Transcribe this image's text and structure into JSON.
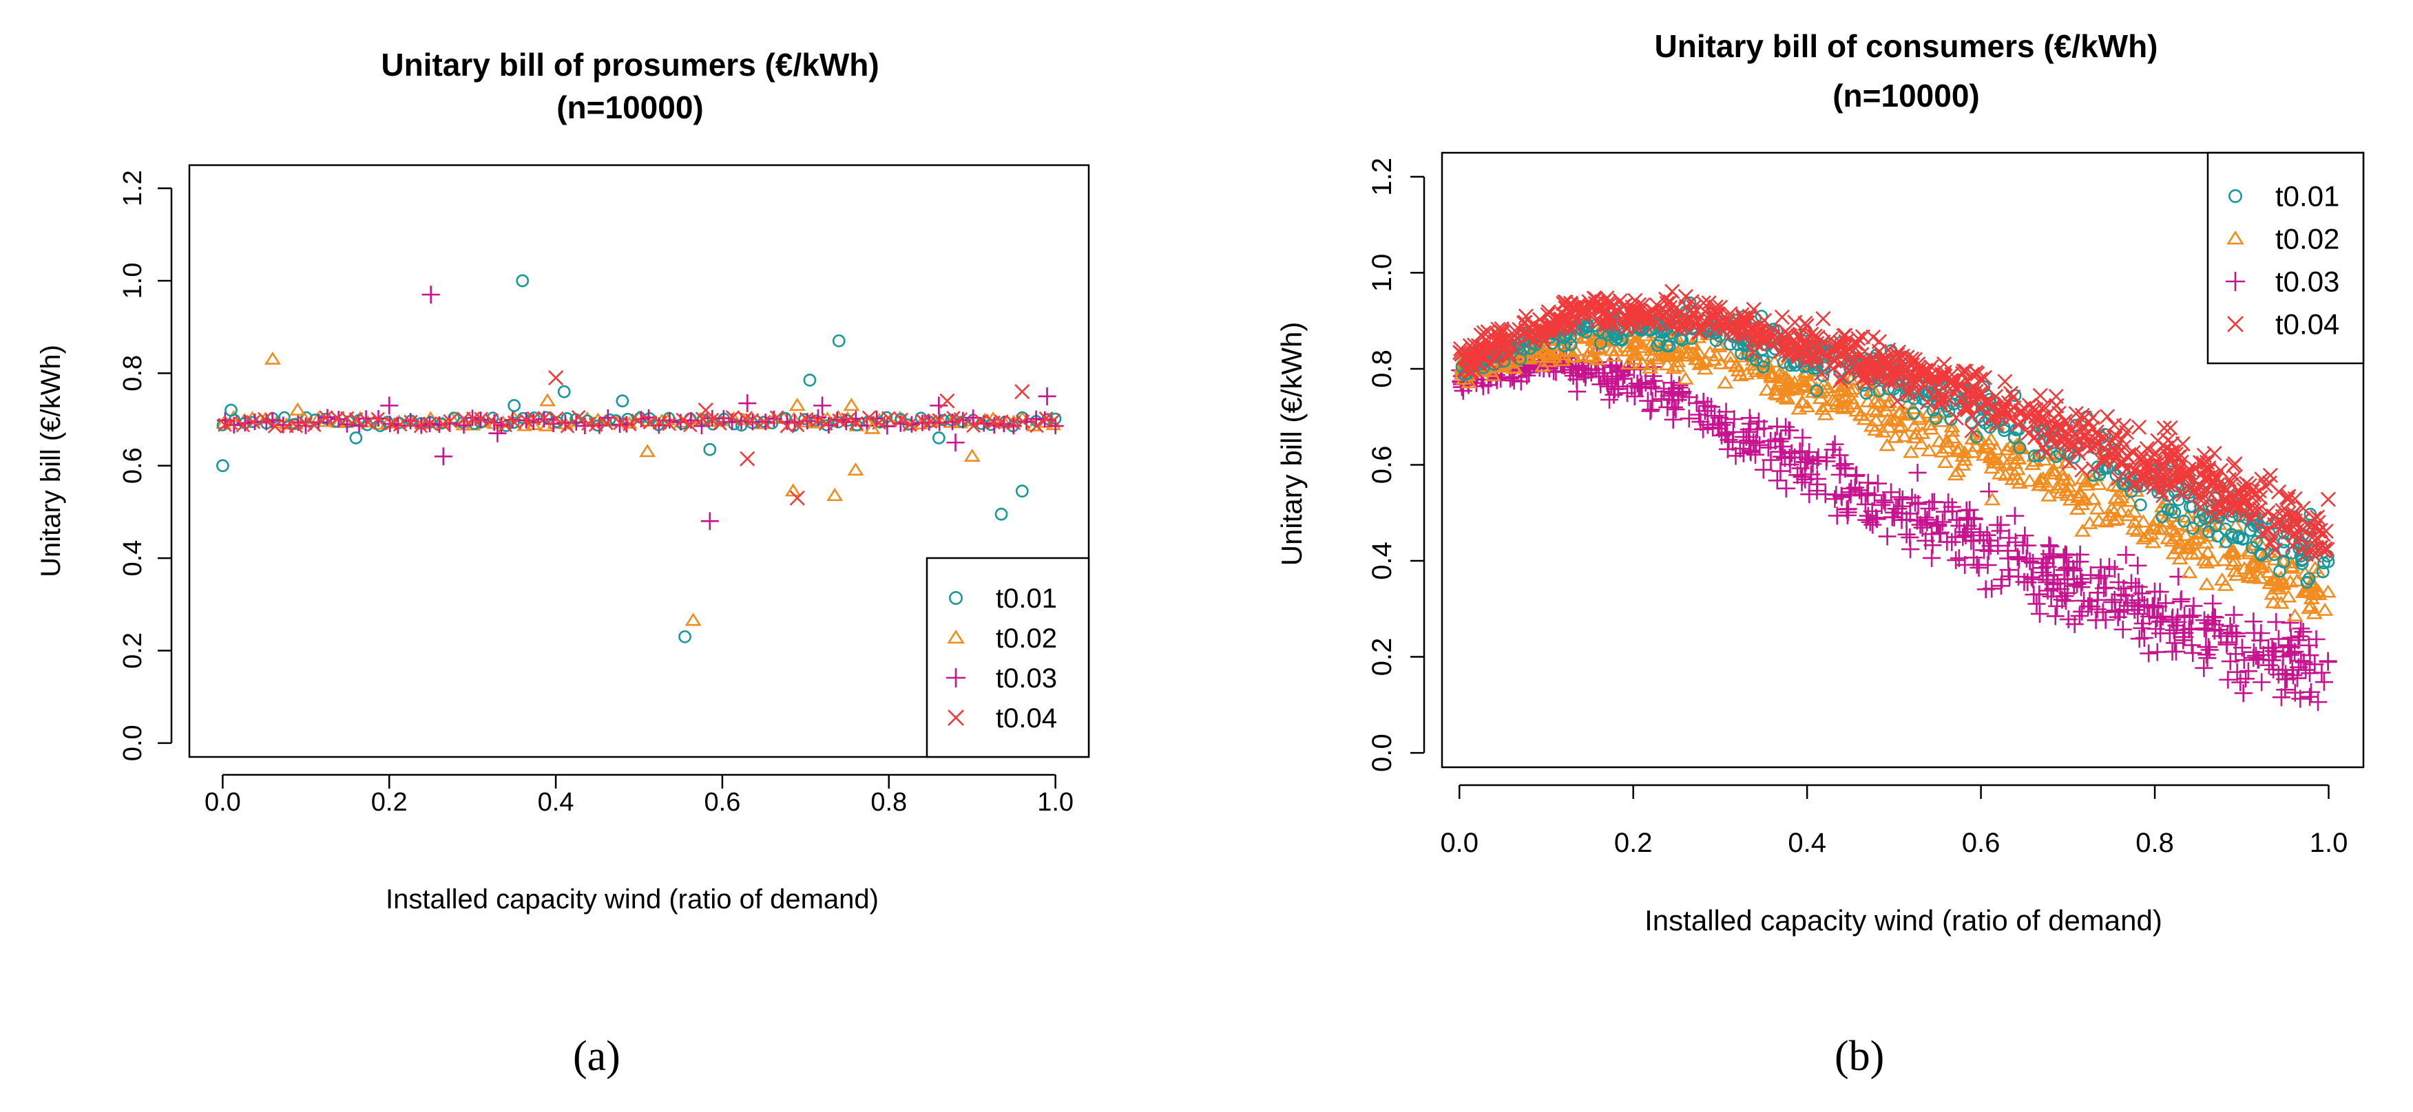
{
  "colors": {
    "t0.01": "#17999a",
    "t0.02": "#f28c1e",
    "t0.03": "#c8138f",
    "t0.04": "#f23a3a"
  },
  "chart_data": [
    {
      "type": "scatter",
      "panel_label": "(a)",
      "title": "Unitary bill of prosumers (€/kWh)",
      "subtitle": "(n=10000)",
      "xlabel": "Installed capacity wind (ratio of demand)",
      "ylabel": "Unitary bill (€/kWh)",
      "xlim": [
        -0.04,
        1.04
      ],
      "ylim": [
        -0.03,
        1.25
      ],
      "xticks": [
        "0.0",
        "0.2",
        "0.4",
        "0.6",
        "0.8",
        "1.0"
      ],
      "yticks": [
        "0.0",
        "0.2",
        "0.4",
        "0.6",
        "0.8",
        "1.0",
        "1.2"
      ],
      "legend": [
        "t0.01",
        "t0.02",
        "t0.03",
        "t0.04"
      ],
      "legend_position": "bottom-right",
      "band": {
        "y_center": 0.695,
        "y_spread": 0.02,
        "count": 80
      },
      "series": [
        {
          "name": "t0.01",
          "marker": "circle",
          "points": [
            [
              0.0,
              0.6
            ],
            [
              0.01,
              0.72
            ],
            [
              0.16,
              0.66
            ],
            [
              0.36,
              1.0
            ],
            [
              0.35,
              0.73
            ],
            [
              0.41,
              0.76
            ],
            [
              0.48,
              0.74
            ],
            [
              0.555,
              0.23
            ],
            [
              0.585,
              0.635
            ],
            [
              0.705,
              0.785
            ],
            [
              0.74,
              0.87
            ],
            [
              0.86,
              0.66
            ],
            [
              0.935,
              0.495
            ],
            [
              0.96,
              0.545
            ]
          ]
        },
        {
          "name": "t0.02",
          "marker": "triangle",
          "points": [
            [
              0.06,
              0.83
            ],
            [
              0.09,
              0.72
            ],
            [
              0.39,
              0.74
            ],
            [
              0.51,
              0.63
            ],
            [
              0.565,
              0.265
            ],
            [
              0.685,
              0.545
            ],
            [
              0.69,
              0.73
            ],
            [
              0.735,
              0.535
            ],
            [
              0.755,
              0.73
            ],
            [
              0.76,
              0.59
            ],
            [
              0.78,
              0.68
            ],
            [
              0.9,
              0.62
            ]
          ]
        },
        {
          "name": "t0.03",
          "marker": "plus",
          "points": [
            [
              0.25,
              0.97
            ],
            [
              0.265,
              0.62
            ],
            [
              0.2,
              0.73
            ],
            [
              0.33,
              0.67
            ],
            [
              0.585,
              0.48
            ],
            [
              0.63,
              0.735
            ],
            [
              0.72,
              0.73
            ],
            [
              0.86,
              0.73
            ],
            [
              0.88,
              0.65
            ],
            [
              0.99,
              0.75
            ]
          ]
        },
        {
          "name": "t0.04",
          "marker": "cross",
          "points": [
            [
              0.4,
              0.79
            ],
            [
              0.63,
              0.615
            ],
            [
              0.69,
              0.53
            ],
            [
              0.87,
              0.74
            ],
            [
              0.96,
              0.76
            ],
            [
              0.58,
              0.72
            ]
          ]
        }
      ]
    },
    {
      "type": "scatter",
      "panel_label": "(b)",
      "title": "Unitary bill of consumers (€/kWh)",
      "subtitle": "(n=10000)",
      "xlabel": "Installed capacity wind (ratio of demand)",
      "ylabel": "Unitary bill (€/kWh)",
      "xlim": [
        -0.02,
        1.04
      ],
      "ylim": [
        -0.03,
        1.25
      ],
      "xticks": [
        "0.0",
        "0.2",
        "0.4",
        "0.6",
        "0.8",
        "1.0"
      ],
      "yticks": [
        "0.0",
        "0.2",
        "0.4",
        "0.6",
        "0.8",
        "1.0",
        "1.2"
      ],
      "legend": [
        "t0.01",
        "t0.02",
        "t0.03",
        "t0.04"
      ],
      "legend_position": "top-right",
      "series": [
        {
          "name": "t0.03",
          "marker": "plus",
          "curve": [
            [
              0.0,
              0.78
            ],
            [
              0.1,
              0.82
            ],
            [
              0.2,
              0.78
            ],
            [
              0.4,
              0.6
            ],
            [
              0.6,
              0.44
            ],
            [
              0.8,
              0.3
            ],
            [
              1.0,
              0.16
            ]
          ],
          "spread": [
            [
              0.0,
              0.04
            ],
            [
              0.2,
              0.08
            ],
            [
              0.6,
              0.14
            ],
            [
              1.0,
              0.15
            ]
          ],
          "count": 650,
          "bias": -0.4
        },
        {
          "name": "t0.02",
          "marker": "triangle",
          "curve": [
            [
              0.0,
              0.8
            ],
            [
              0.15,
              0.86
            ],
            [
              0.3,
              0.82
            ],
            [
              0.5,
              0.7
            ],
            [
              0.7,
              0.56
            ],
            [
              0.85,
              0.44
            ],
            [
              1.0,
              0.32
            ]
          ],
          "spread": [
            [
              0.0,
              0.05
            ],
            [
              0.3,
              0.08
            ],
            [
              0.6,
              0.11
            ],
            [
              1.0,
              0.12
            ]
          ],
          "count": 600,
          "bias": -0.1
        },
        {
          "name": "t0.01",
          "marker": "circle",
          "curve": [
            [
              0.0,
              0.81
            ],
            [
              0.15,
              0.89
            ],
            [
              0.3,
              0.88
            ],
            [
              0.5,
              0.78
            ],
            [
              0.7,
              0.64
            ],
            [
              0.85,
              0.52
            ],
            [
              1.0,
              0.4
            ]
          ],
          "spread": [
            [
              0.0,
              0.05
            ],
            [
              0.3,
              0.07
            ],
            [
              0.6,
              0.1
            ],
            [
              1.0,
              0.12
            ]
          ],
          "count": 520,
          "bias": 0.15
        },
        {
          "name": "t0.04",
          "marker": "cross",
          "curve": [
            [
              0.0,
              0.82
            ],
            [
              0.15,
              0.92
            ],
            [
              0.3,
              0.9
            ],
            [
              0.5,
              0.8
            ],
            [
              0.7,
              0.67
            ],
            [
              0.85,
              0.56
            ],
            [
              1.0,
              0.45
            ]
          ],
          "spread": [
            [
              0.0,
              0.06
            ],
            [
              0.3,
              0.07
            ],
            [
              0.6,
              0.1
            ],
            [
              1.0,
              0.13
            ]
          ],
          "count": 900,
          "bias": 0.2
        }
      ]
    }
  ]
}
